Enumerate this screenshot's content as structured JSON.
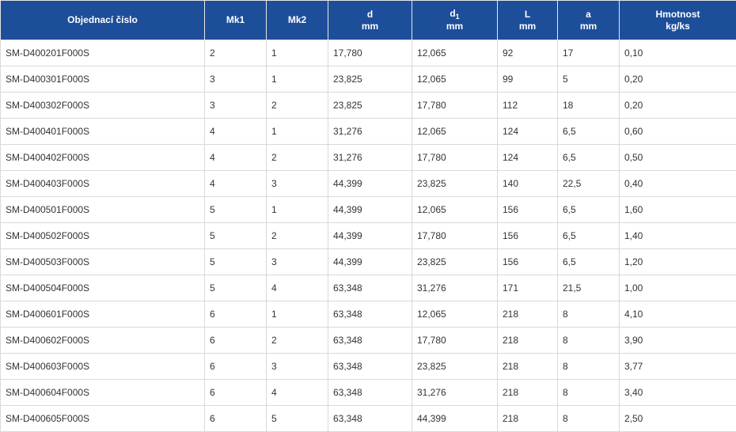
{
  "table": {
    "headers": [
      {
        "line1": "Objednací číslo",
        "line2": ""
      },
      {
        "line1": "Mk1",
        "line2": ""
      },
      {
        "line1": "Mk2",
        "line2": ""
      },
      {
        "line1": "d",
        "line2": "mm"
      },
      {
        "line1": "d",
        "sub": "1",
        "line2": "mm"
      },
      {
        "line1": "L",
        "line2": "mm"
      },
      {
        "line1": "a",
        "line2": "mm"
      },
      {
        "line1": "Hmotnost",
        "line2": "kg/ks"
      }
    ],
    "rows": [
      [
        "SM-D400201F000S",
        "2",
        "1",
        "17,780",
        "12,065",
        "92",
        "17",
        "0,10"
      ],
      [
        "SM-D400301F000S",
        "3",
        "1",
        "23,825",
        "12,065",
        "99",
        "5",
        "0,20"
      ],
      [
        "SM-D400302F000S",
        "3",
        "2",
        "23,825",
        "17,780",
        "112",
        "18",
        "0,20"
      ],
      [
        "SM-D400401F000S",
        "4",
        "1",
        "31,276",
        "12,065",
        "124",
        "6,5",
        "0,60"
      ],
      [
        "SM-D400402F000S",
        "4",
        "2",
        "31,276",
        "17,780",
        "124",
        "6,5",
        "0,50"
      ],
      [
        "SM-D400403F000S",
        "4",
        "3",
        "44,399",
        "23,825",
        "140",
        "22,5",
        "0,40"
      ],
      [
        "SM-D400501F000S",
        "5",
        "1",
        "44,399",
        "12,065",
        "156",
        "6,5",
        "1,60"
      ],
      [
        "SM-D400502F000S",
        "5",
        "2",
        "44,399",
        "17,780",
        "156",
        "6,5",
        "1,40"
      ],
      [
        "SM-D400503F000S",
        "5",
        "3",
        "44,399",
        "23,825",
        "156",
        "6,5",
        "1,20"
      ],
      [
        "SM-D400504F000S",
        "5",
        "4",
        "63,348",
        "31,276",
        "171",
        "21,5",
        "1,00"
      ],
      [
        "SM-D400601F000S",
        "6",
        "1",
        "63,348",
        "12,065",
        "218",
        "8",
        "4,10"
      ],
      [
        "SM-D400602F000S",
        "6",
        "2",
        "63,348",
        "17,780",
        "218",
        "8",
        "3,90"
      ],
      [
        "SM-D400603F000S",
        "6",
        "3",
        "63,348",
        "23,825",
        "218",
        "8",
        "3,77"
      ],
      [
        "SM-D400604F000S",
        "6",
        "4",
        "63,348",
        "31,276",
        "218",
        "8",
        "3,40"
      ],
      [
        "SM-D400605F000S",
        "6",
        "5",
        "63,348",
        "44,399",
        "218",
        "8",
        "2,50"
      ]
    ]
  },
  "colors": {
    "header_bg": "#1d4e9a",
    "header_text": "#ffffff",
    "cell_text": "#333333",
    "grid": "#d9d9d9"
  }
}
